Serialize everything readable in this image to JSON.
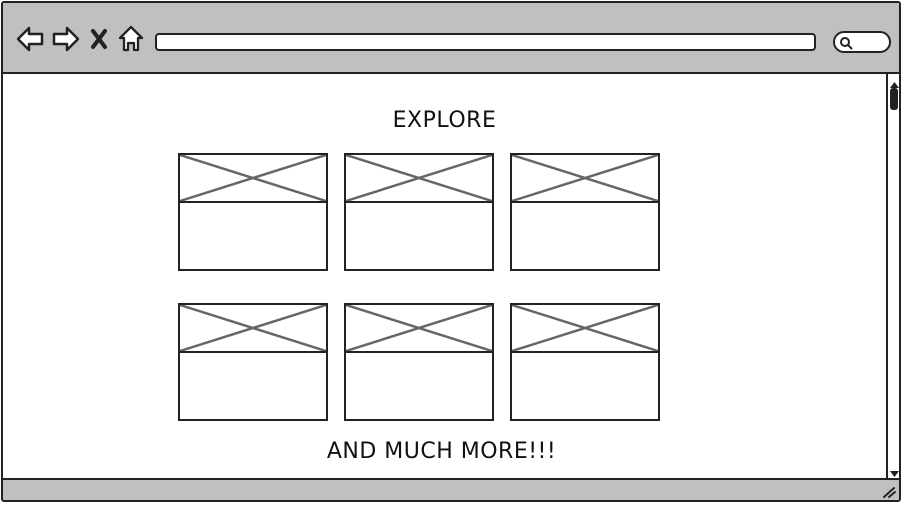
{
  "browser": {
    "toolbar": {
      "icons": [
        "back-arrow-icon",
        "forward-arrow-icon",
        "close-icon",
        "home-icon"
      ],
      "address_value": "",
      "search_icon": "search-icon"
    },
    "status_icon": "resize-grip-icon",
    "colors": {
      "chrome": "#c0c0c0",
      "outline": "#222222",
      "placeholder_x": "#666666"
    }
  },
  "page": {
    "heading": "EXPLORE",
    "cards": [
      {
        "image": "image-placeholder"
      },
      {
        "image": "image-placeholder"
      },
      {
        "image": "image-placeholder"
      },
      {
        "image": "image-placeholder"
      },
      {
        "image": "image-placeholder"
      },
      {
        "image": "image-placeholder"
      }
    ],
    "footer_text": "AND MUCH MORE!!!"
  }
}
